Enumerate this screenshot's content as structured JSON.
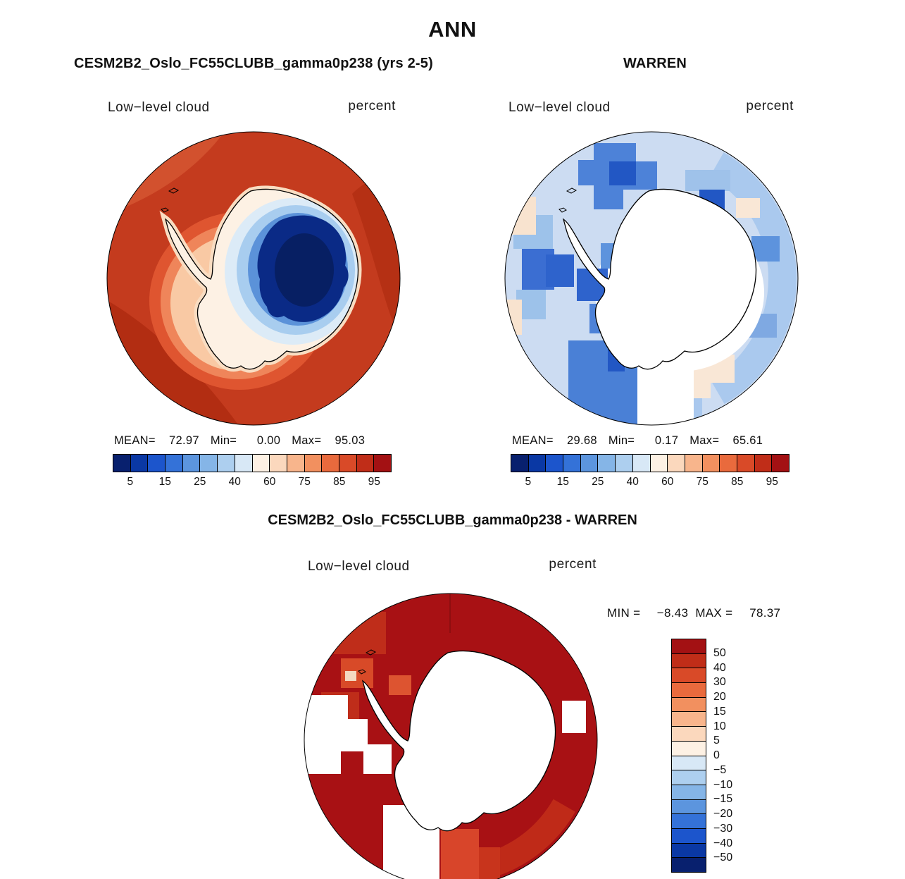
{
  "title": "ANN",
  "panels": {
    "model": {
      "title": "CESM2B2_Oslo_FC55CLUBB_gamma0p238 (yrs 2-5)",
      "field_label": "Low−level cloud",
      "units_label": "percent",
      "stats": {
        "mean_label": "MEAN=",
        "mean": "72.97",
        "min_label": "Min=",
        "min": "0.00",
        "max_label": "Max=",
        "max": "95.03"
      }
    },
    "obs": {
      "title": "WARREN",
      "field_label": "Low−level cloud",
      "units_label": "percent",
      "stats": {
        "mean_label": "MEAN=",
        "mean": "29.68",
        "min_label": "Min=",
        "min": "0.17",
        "max_label": "Max=",
        "max": "65.61"
      }
    },
    "diff": {
      "title": "CESM2B2_Oslo_FC55CLUBB_gamma0p238 - WARREN",
      "field_label": "Low−level cloud",
      "units_label": "percent",
      "stats": {
        "min_label": "MIN =",
        "min": "−8.43",
        "max_label": "MAX =",
        "max": "78.37"
      }
    }
  },
  "colorbar": {
    "palette": [
      "#08206e",
      "#0a38a4",
      "#1c55cc",
      "#3472d8",
      "#5c95de",
      "#85b5e7",
      "#adcfef",
      "#d8e8f6",
      "#fdf1e4",
      "#fbd8bd",
      "#f8b58c",
      "#f2905f",
      "#e96a3d",
      "#d94a28",
      "#c02d18",
      "#a31113"
    ],
    "tick_labels": [
      "5",
      "15",
      "25",
      "40",
      "60",
      "75",
      "85",
      "95"
    ]
  },
  "diff_colorbar": {
    "palette": [
      "#a31113",
      "#c02d18",
      "#d94a28",
      "#e96a3d",
      "#f2905f",
      "#f8b58c",
      "#fbd8bd",
      "#fdf1e4",
      "#d8e8f6",
      "#adcfef",
      "#85b5e7",
      "#5c95de",
      "#3472d8",
      "#1c55cc",
      "#0a38a4",
      "#08206e"
    ],
    "tick_labels": [
      "50",
      "40",
      "30",
      "20",
      "15",
      "10",
      "5",
      "0",
      "−5",
      "−10",
      "−15",
      "−20",
      "−30",
      "−40",
      "−50"
    ]
  },
  "chart_data": {
    "type": "heatmap",
    "subtype": "south-polar stereographic filled-contour maps",
    "suptitle": "ANN",
    "variable": "Low-level cloud",
    "units": "percent",
    "panels": [
      {
        "title": "CESM2B2_Oslo_FC55CLUBB_gamma0p238 (yrs 2-5)",
        "mean": 72.97,
        "min": 0.0,
        "max": 95.03,
        "contour_levels": [
          5,
          10,
          15,
          20,
          25,
          30,
          40,
          50,
          60,
          70,
          75,
          80,
          85,
          90,
          95
        ],
        "labeled_levels": [
          5,
          15,
          25,
          40,
          60,
          75,
          85,
          95
        ],
        "legend_position": "horizontal bar below panel",
        "description": "High low-cloud fraction (75–95%, red shades) over the Southern Ocean; very low values (<15%, dark blue) over the East Antarctic plateau; pale band (40–60%) hugging the coast, mainly on the western side."
      },
      {
        "title": "WARREN",
        "mean": 29.68,
        "min": 0.17,
        "max": 65.61,
        "contour_levels": [
          5,
          10,
          15,
          20,
          25,
          30,
          40,
          50,
          60,
          70,
          75,
          80,
          85,
          90,
          95
        ],
        "labeled_levels": [
          5,
          15,
          25,
          40,
          60,
          75,
          85,
          95
        ],
        "legend_position": "horizontal bar below panel",
        "description": "Blocky station-based observations: mostly 15–40% (light-to-medium blue) over the Southern Ocean with scattered darker blue blocks and a few cream patches; no data (white) over the Antarctic continent and adjacent seas."
      },
      {
        "title": "CESM2B2_Oslo_FC55CLUBB_gamma0p238 - WARREN",
        "min": -8.43,
        "max": 78.37,
        "contour_levels": [
          -50,
          -40,
          -30,
          -20,
          -15,
          -10,
          -5,
          0,
          5,
          10,
          15,
          20,
          30,
          40,
          50
        ],
        "labeled_levels": [
          50,
          40,
          30,
          20,
          15,
          10,
          5,
          0,
          -5,
          -10,
          -15,
          -20,
          -30,
          -40,
          -50
        ],
        "legend_position": "vertical bar right of panel",
        "description": "Model minus observations: mostly greater than +50 (dark red) over the ocean, with smaller positive patches (+10 to +40) near the coast and white (no data) wedges over the continent and data-void sectors."
      }
    ],
    "palette_hex": [
      "#08206e",
      "#0a38a4",
      "#1c55cc",
      "#3472d8",
      "#5c95de",
      "#85b5e7",
      "#adcfef",
      "#d8e8f6",
      "#fdf1e4",
      "#fbd8bd",
      "#f8b58c",
      "#f2905f",
      "#e96a3d",
      "#d94a28",
      "#c02d18",
      "#a31113"
    ],
    "projection": "south polar stereographic, Antarctica centered",
    "grid": "off"
  }
}
